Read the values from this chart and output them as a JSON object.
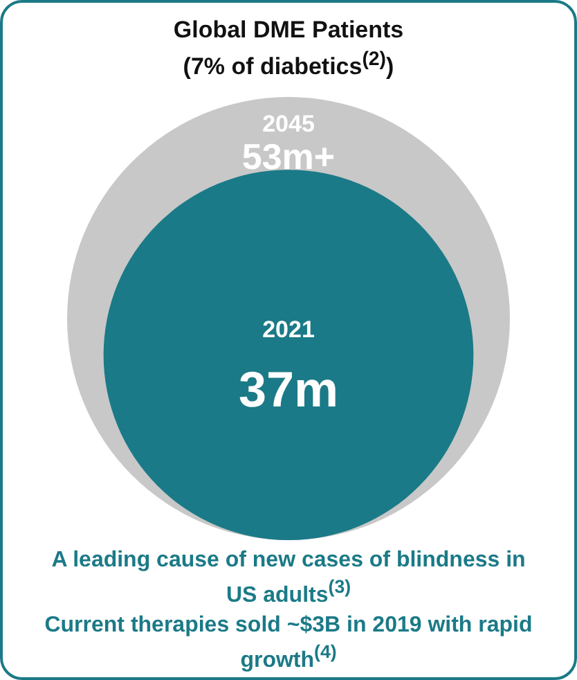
{
  "chart_data": {
    "type": "other",
    "title": "Global DME Patients",
    "subtitle": "(7% of diabetics$^{(2)}$)",
    "categories": [
      "2045",
      "2021"
    ],
    "values": [
      53,
      37
    ],
    "value_labels": [
      "53m+",
      "37m"
    ],
    "colors": [
      "#c8c8c8",
      "#1b7a87"
    ],
    "annotations": [
      "A leading cause of new cases of blindness in US adults$^{(3)}$",
      "Current therapies sold ~$3B in 2019 with rapid growth$^{(4)}$"
    ]
  }
}
